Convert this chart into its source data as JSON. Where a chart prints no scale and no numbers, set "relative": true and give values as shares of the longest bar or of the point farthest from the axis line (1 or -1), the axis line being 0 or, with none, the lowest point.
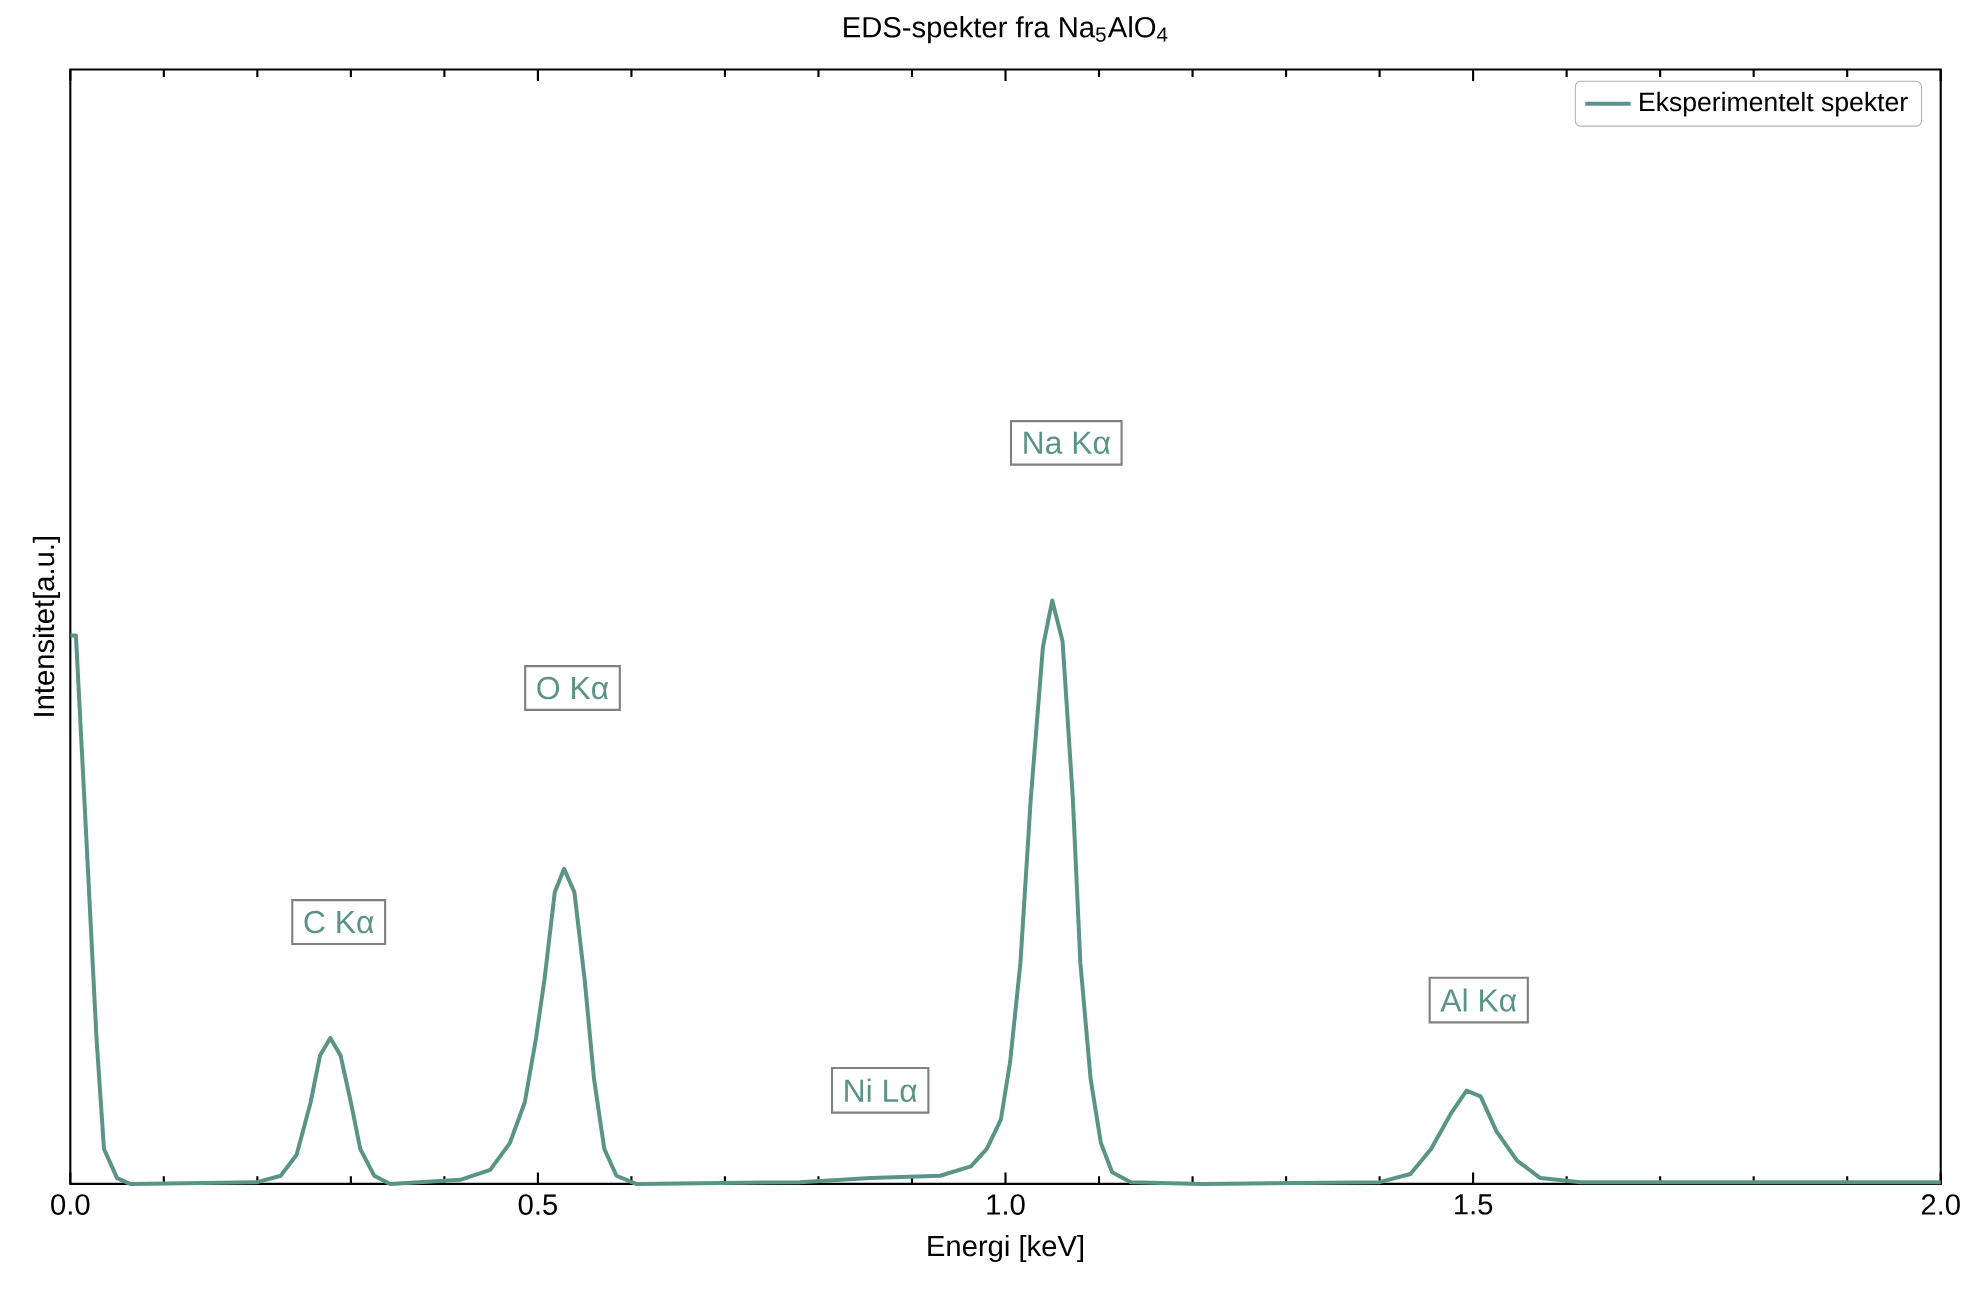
{
  "chart_data": {
    "type": "line",
    "title": "EDS-spekter fra Na$_{5}$AlO$_{4}$",
    "xlabel": "Energi [keV]",
    "ylabel": "Intensitet[a.u.]",
    "relative": true,
    "xlim": [
      0,
      2
    ],
    "xticks": [
      {
        "value": 0,
        "label": "0.0"
      },
      {
        "value": 0.5,
        "label": "0.5"
      },
      {
        "value": 1,
        "label": "1.0"
      },
      {
        "value": 1.5,
        "label": "1.5"
      },
      {
        "value": 2,
        "label": "2.0"
      }
    ],
    "grid": false,
    "legend": "top right",
    "marker": "none",
    "line_style": "solid",
    "annotations": [
      "C Kα",
      "O Kα",
      "Na Kα",
      "Ni Lα",
      "Al Kα"
    ],
    "series": [
      {
        "name": "Eksperimentelt spekter",
        "color": "#5a9486",
        "x": [
          0,
          0.006,
          0.015,
          0.028,
          0.036,
          0.05,
          0.064,
          0.2,
          0.225,
          0.242,
          0.257,
          0.267,
          0.278,
          0.289,
          0.3,
          0.31,
          0.325,
          0.342,
          0.417,
          0.449,
          0.47,
          0.486,
          0.498,
          0.507,
          0.518,
          0.528,
          0.539,
          0.55,
          0.56,
          0.571,
          0.584,
          0.605,
          0.78,
          0.856,
          0.93,
          0.963,
          0.98,
          0.995,
          1.005,
          1.016,
          1.027,
          1.04,
          1.05,
          1.061,
          1.072,
          1.08,
          1.091,
          1.102,
          1.114,
          1.134,
          1.21,
          1.4,
          1.433,
          1.455,
          1.476,
          1.493,
          1.508,
          1.525,
          1.547,
          1.572,
          1.615,
          2.0
        ],
        "values": [
          0.94,
          0.94,
          0.66,
          0.25,
          0.06,
          0.01,
          0,
          0.003,
          0.014,
          0.05,
          0.14,
          0.22,
          0.25,
          0.22,
          0.14,
          0.06,
          0.014,
          0,
          0.007,
          0.024,
          0.07,
          0.14,
          0.25,
          0.35,
          0.5,
          0.54,
          0.5,
          0.35,
          0.18,
          0.06,
          0.014,
          0,
          0.003,
          0.01,
          0.014,
          0.03,
          0.06,
          0.11,
          0.21,
          0.38,
          0.66,
          0.92,
          1.0,
          0.93,
          0.66,
          0.38,
          0.18,
          0.07,
          0.02,
          0.003,
          0,
          0.003,
          0.017,
          0.06,
          0.12,
          0.16,
          0.15,
          0.09,
          0.04,
          0.01,
          0.003,
          0.003
        ]
      }
    ]
  }
}
